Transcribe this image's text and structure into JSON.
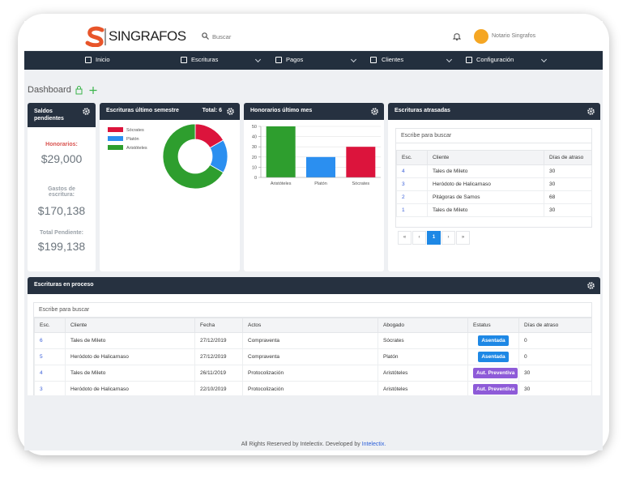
{
  "header": {
    "logo": "SINGRAFOS",
    "search_placeholder": "Buscar",
    "user": "Notario Singrafos"
  },
  "nav": [
    "Inicio",
    "Escrituras",
    "Pagos",
    "Clientes",
    "Configuración"
  ],
  "page_title": "Dashboard",
  "saldos": {
    "title": "Saldos pendientes",
    "items": [
      {
        "label": "Honorarios:",
        "value": "$29,000"
      },
      {
        "label": "Gastos de escritura:",
        "value": "$170,138"
      },
      {
        "label": "Total Pendiente:",
        "value": "$199,138"
      }
    ]
  },
  "semestre_total": "Total: 6",
  "chart_data": [
    {
      "type": "pie",
      "title": "Escrituras último semestre",
      "donut": true,
      "categories": [
        "Sócrates",
        "Platón",
        "Aristóteles"
      ],
      "values": [
        1,
        1,
        4
      ],
      "colors": [
        "#dc143c",
        "#2b8ff0",
        "#2e9e2e"
      ]
    },
    {
      "type": "bar",
      "title": "Honorarios último mes",
      "categories": [
        "Aristóteles",
        "Platón",
        "Sócrates"
      ],
      "values": [
        50,
        20,
        30
      ],
      "colors": [
        "#2e9e2e",
        "#2b8ff0",
        "#dc143c"
      ],
      "ylim": [
        0,
        50
      ],
      "yticks": [
        0,
        10,
        20,
        30,
        40,
        50
      ],
      "grid": true
    }
  ],
  "atrasadas": {
    "title": "Escrituras atrasadas",
    "search": "Escribe para buscar",
    "columns": [
      "Esc.",
      "Cliente",
      "Días de atraso"
    ],
    "rows": [
      [
        4,
        "Tales de Mileto",
        30
      ],
      [
        3,
        "Heródoto de Halicarnaso",
        30
      ],
      [
        2,
        "Pitágoras de Samos",
        68
      ],
      [
        1,
        "Tales de Mileto",
        30
      ]
    ],
    "pagination": [
      "«",
      "‹",
      "1",
      "›",
      "»"
    ]
  },
  "proceso": {
    "title": "Escrituras en proceso",
    "search": "Escribe para buscar",
    "columns": [
      "Esc.",
      "Cliente",
      "Fecha",
      "Actos",
      "Abogado",
      "Estatus",
      "Días de atraso"
    ],
    "rows": [
      [
        6,
        "Tales de Mileto",
        "27/12/2019",
        "Compraventa",
        "Sócrates",
        "Asentada",
        0
      ],
      [
        5,
        "Heródoto de Halicarnaso",
        "27/12/2019",
        "Compraventa",
        "Platón",
        "Asentada",
        0
      ],
      [
        4,
        "Tales de Mileto",
        "26/11/2019",
        "Protocolización",
        "Aristóteles",
        "Aut. Preventiva",
        30
      ],
      [
        3,
        "Heródoto de Halicarnaso",
        "22/10/2019",
        "Protocolización",
        "Aristóteles",
        "Aut. Preventiva",
        30
      ]
    ],
    "badge_colors": [
      "#1e88e5",
      "#1e88e5",
      "#8e5bd8",
      "#8e5bd8"
    ]
  },
  "footer": {
    "text": "All Rights Reserved by Intelectix. Developed by ",
    "link": "Intelectix."
  }
}
